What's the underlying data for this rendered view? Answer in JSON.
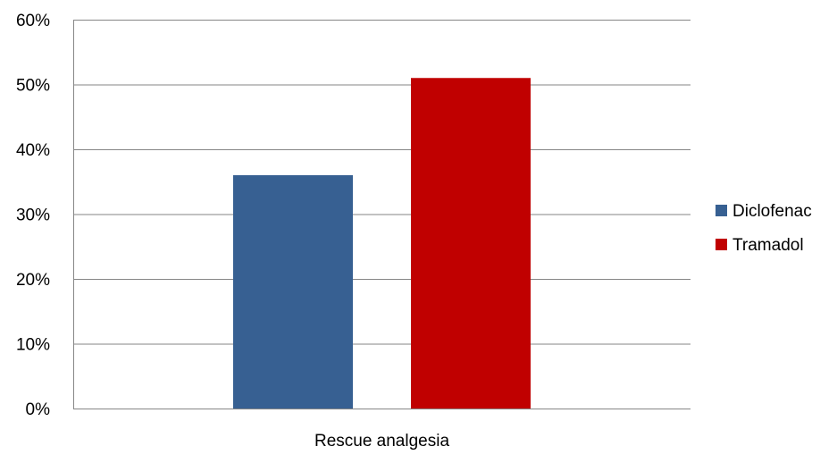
{
  "chart_data": {
    "type": "bar",
    "title": "",
    "xlabel": "",
    "ylabel": "",
    "categories": [
      "Rescue analgesia"
    ],
    "series": [
      {
        "name": "Diclofenac",
        "values": [
          36
        ],
        "color": "#376092"
      },
      {
        "name": "Tramadol",
        "values": [
          51
        ],
        "color": "#C00000"
      }
    ],
    "ylim": [
      0,
      60
    ],
    "yticks": [
      0,
      10,
      20,
      30,
      40,
      50,
      60
    ],
    "ytick_labels": [
      "0%",
      "10%",
      "20%",
      "30%",
      "40%",
      "50%",
      "60%"
    ],
    "value_format": "percent",
    "grid": true,
    "legend": {
      "position": "right",
      "entries": [
        "Diclofenac",
        "Tramadol"
      ]
    },
    "colors": {
      "grid": "#868686",
      "axis": "#868686",
      "plot_border": "#868686"
    }
  }
}
